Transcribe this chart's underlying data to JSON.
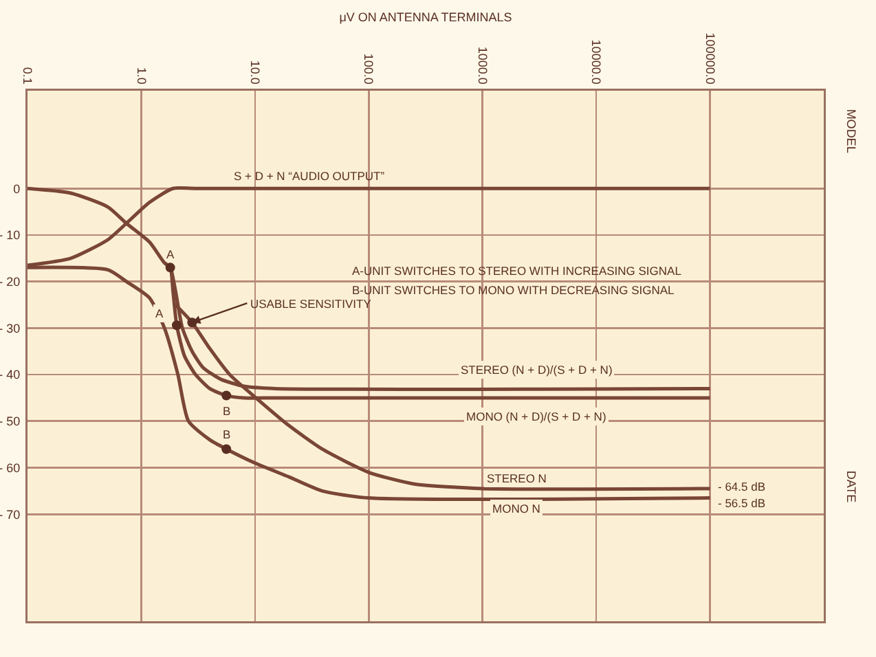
{
  "chart_data": {
    "type": "line",
    "xlabel": "μV ON ANTENNA TERMINALS",
    "log": "x",
    "xlim": [
      0.1,
      1000000
    ],
    "xticks": [
      {
        "value": 0.1,
        "label": "0.1"
      },
      {
        "value": 1,
        "label": "1.0"
      },
      {
        "value": 10,
        "label": "10.0"
      },
      {
        "value": 100,
        "label": "100.0"
      },
      {
        "value": 1000,
        "label": "1000.0"
      },
      {
        "value": 10000,
        "label": "10000.0"
      },
      {
        "value": 100000,
        "label": "100000.0"
      }
    ],
    "ylim": [
      -93,
      21
    ],
    "yticks": [
      {
        "value": 0,
        "label": "0"
      },
      {
        "value": -10,
        "label": "- 10"
      },
      {
        "value": -20,
        "label": "- 20"
      },
      {
        "value": -30,
        "label": "- 30"
      },
      {
        "value": -40,
        "label": "- 40"
      },
      {
        "value": -50,
        "label": "- 50"
      },
      {
        "value": -60,
        "label": "- 60"
      },
      {
        "value": -70,
        "label": "- 70"
      }
    ],
    "grid": true,
    "line_style": "solid",
    "series": [
      {
        "color": "#7a4636",
        "x": [
          0.1,
          0.24,
          0.51,
          0.74,
          1.18,
          1.9,
          3,
          100000
        ],
        "values": [
          -16.5,
          -15,
          -11,
          -7.5,
          -3,
          0,
          0,
          0
        ]
      },
      {
        "color": "#7a4636",
        "x": [
          0.1,
          0.24,
          0.51,
          0.74,
          1.18,
          1.6,
          1.8,
          2.0,
          2.3,
          2.8,
          3.5,
          5,
          8,
          15,
          100000
        ],
        "values": [
          0,
          -1,
          -4,
          -7.5,
          -11.5,
          -16,
          -17,
          -22,
          -30,
          -35,
          -38.5,
          -41,
          -42.5,
          -43,
          -43
        ]
      },
      {
        "color": "#7a4636",
        "x": [
          1.6,
          1.8,
          1.9,
          2.05,
          2.4,
          3.0,
          4.0,
          5.6,
          8,
          15,
          100000
        ],
        "values": [
          -16,
          -17,
          -22,
          -29.4,
          -36,
          -40,
          -43,
          -44.5,
          -45,
          -45,
          -45
        ]
      },
      {
        "color": "#7a4636",
        "x": [
          2.0,
          2.8,
          3.9,
          6,
          10.9,
          20,
          39,
          100,
          250,
          1000,
          100000
        ],
        "values": [
          -25,
          -28.8,
          -34,
          -40,
          -45.6,
          -51,
          -56,
          -61,
          -63.5,
          -64.5,
          -64.5
        ]
      },
      {
        "color": "#7a4636",
        "x": [
          0.1,
          0.51,
          0.74,
          1.18,
          1.6,
          2.1,
          2.6,
          4,
          5.6,
          10,
          20,
          39,
          100,
          100000
        ],
        "values": [
          -17,
          -17.5,
          -20,
          -23.5,
          -30,
          -40,
          -50,
          -54,
          -56,
          -59,
          -62,
          -65,
          -66.5,
          -66.5
        ]
      },
      {
        "type": "scatter",
        "color": "#5a2e22",
        "x": [
          1.8,
          2.05,
          2.8,
          5.6,
          5.6
        ],
        "values": [
          -17,
          -29.4,
          -28.8,
          -44.5,
          -56
        ]
      }
    ],
    "annotations": [
      {
        "text": "S + D + N “AUDIO OUTPUT”",
        "x": 30,
        "y": 0
      },
      "A-UNIT SWITCHES TO STEREO WITH INCREASING SIGNAL",
      "B-UNIT SWITCHES TO MONO WITH DECREASING SIGNAL",
      {
        "text": "USABLE SENSITIVITY",
        "x": 2.8,
        "y": -28.8
      },
      {
        "text": "A",
        "x": 1.8,
        "y": -17
      },
      {
        "text": "A",
        "x": 2.05,
        "y": -29.4
      },
      {
        "text": "B",
        "x": 5.6,
        "y": -44.5
      },
      {
        "text": "B",
        "x": 5.6,
        "y": -56
      },
      {
        "text": "STEREO (N + D)/(S + D + N)",
        "x": 3000,
        "y": -43
      },
      {
        "text": "MONO (N + D)/(S + D + N)",
        "x": 3000,
        "y": -45
      },
      {
        "text": "STEREO N",
        "x": 2000,
        "y": -64.5
      },
      {
        "text": "MONO N",
        "x": 2000,
        "y": -66.5
      },
      {
        "text": "- 64.5 dB",
        "x": 100000,
        "y": -64.5
      },
      {
        "text": "- 56.5 dB",
        "x": 100000,
        "y": -66.5
      },
      "MODEL",
      "DATE"
    ]
  }
}
